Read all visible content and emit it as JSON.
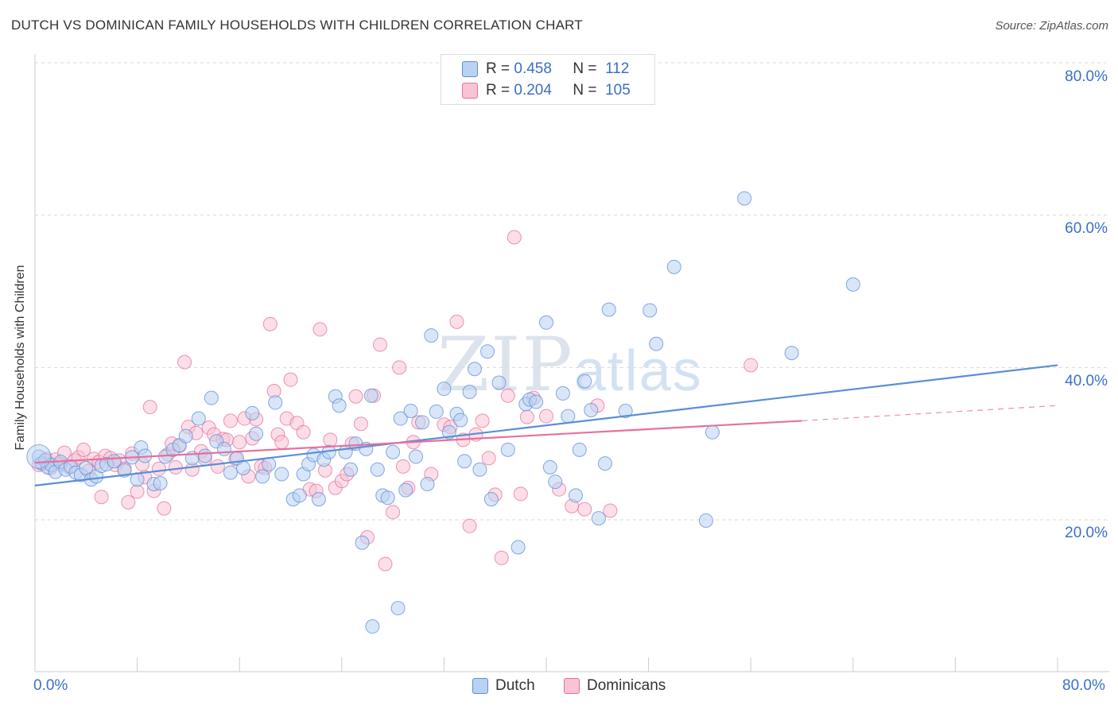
{
  "title": "DUTCH VS DOMINICAN FAMILY HOUSEHOLDS WITH CHILDREN CORRELATION CHART",
  "source": "Source: ZipAtlas.com",
  "watermark": {
    "zip": "ZIP",
    "atlas": "atlas"
  },
  "stats": {
    "dutch": {
      "r_label": "R =",
      "r": "0.458",
      "n_label": "N =",
      "n": "112"
    },
    "dominicans": {
      "r_label": "R =",
      "r": "0.204",
      "n_label": "N =",
      "n": "105"
    }
  },
  "legend": {
    "dutch": "Dutch",
    "dominicans": "Dominicans"
  },
  "x_tick_labels": {
    "min": "0.0%",
    "max": "80.0%"
  },
  "y_tick_labels": [
    "80.0%",
    "60.0%",
    "40.0%",
    "20.0%"
  ],
  "colors": {
    "dutch": "#5b8ed8",
    "dutch_fill": "#b9d1f3",
    "dominicans": "#e8709a",
    "dominicans_fill": "#f8c3d5",
    "grid": "#d9d9d9",
    "axis_text": "#3a6fc4"
  },
  "chart_data": {
    "type": "scatter",
    "title": "DUTCH VS DOMINICAN FAMILY HOUSEHOLDS WITH CHILDREN CORRELATION CHART",
    "xlabel": "",
    "ylabel": "Family Households with Children",
    "xlim": [
      0,
      80
    ],
    "ylim": [
      0,
      82
    ],
    "x_ticks": [
      0,
      8,
      16,
      24,
      32,
      40,
      48,
      56,
      64,
      72,
      80
    ],
    "y_gridlines": [
      20,
      40,
      60,
      80
    ],
    "legend_position": "bottom-center",
    "series": [
      {
        "name": "Dutch",
        "r": 0.458,
        "n": 112,
        "trend": {
          "x": [
            0,
            80
          ],
          "y": [
            24.5,
            40.3
          ],
          "dashed_from": null
        },
        "points": [
          [
            0.3,
            28.3
          ],
          [
            0.5,
            27.4
          ],
          [
            0.8,
            27.8
          ],
          [
            1.0,
            26.9
          ],
          [
            1.3,
            27.2
          ],
          [
            1.6,
            26.3
          ],
          [
            2.0,
            27.6
          ],
          [
            2.4,
            26.6
          ],
          [
            2.8,
            27.0
          ],
          [
            3.2,
            26.2
          ],
          [
            3.6,
            25.9
          ],
          [
            4.0,
            26.8
          ],
          [
            4.4,
            25.3
          ],
          [
            4.8,
            25.7
          ],
          [
            5.2,
            27.1
          ],
          [
            5.6,
            27.3
          ],
          [
            6.2,
            27.7
          ],
          [
            7.0,
            26.5
          ],
          [
            7.6,
            28.2
          ],
          [
            8.0,
            25.3
          ],
          [
            8.3,
            29.5
          ],
          [
            8.6,
            28.4
          ],
          [
            9.3,
            24.7
          ],
          [
            9.8,
            24.8
          ],
          [
            10.2,
            28.3
          ],
          [
            10.8,
            29.2
          ],
          [
            11.3,
            29.8
          ],
          [
            11.8,
            31.0
          ],
          [
            12.3,
            28.1
          ],
          [
            12.8,
            33.3
          ],
          [
            13.3,
            28.4
          ],
          [
            13.8,
            36.0
          ],
          [
            14.2,
            30.3
          ],
          [
            14.8,
            29.3
          ],
          [
            15.3,
            26.2
          ],
          [
            15.8,
            28.1
          ],
          [
            16.3,
            26.8
          ],
          [
            17.0,
            34.0
          ],
          [
            17.3,
            31.3
          ],
          [
            17.8,
            25.7
          ],
          [
            18.3,
            27.3
          ],
          [
            18.8,
            35.4
          ],
          [
            19.3,
            26.0
          ],
          [
            20.2,
            22.7
          ],
          [
            20.7,
            23.2
          ],
          [
            21.0,
            26.0
          ],
          [
            21.4,
            27.3
          ],
          [
            21.8,
            28.5
          ],
          [
            22.2,
            22.7
          ],
          [
            22.6,
            27.9
          ],
          [
            23.0,
            28.9
          ],
          [
            23.5,
            36.2
          ],
          [
            23.8,
            35.0
          ],
          [
            24.3,
            28.9
          ],
          [
            24.7,
            26.6
          ],
          [
            25.1,
            30.0
          ],
          [
            25.6,
            17.0
          ],
          [
            25.9,
            29.3
          ],
          [
            26.3,
            36.3
          ],
          [
            26.8,
            26.6
          ],
          [
            27.2,
            23.2
          ],
          [
            27.6,
            22.9
          ],
          [
            28.0,
            28.9
          ],
          [
            28.6,
            33.3
          ],
          [
            28.4,
            8.4
          ],
          [
            29.0,
            23.9
          ],
          [
            29.4,
            34.3
          ],
          [
            29.8,
            28.3
          ],
          [
            30.3,
            32.8
          ],
          [
            30.7,
            24.7
          ],
          [
            31.0,
            44.2
          ],
          [
            31.4,
            34.2
          ],
          [
            32.0,
            37.2
          ],
          [
            32.4,
            31.5
          ],
          [
            33.0,
            33.9
          ],
          [
            33.3,
            33.1
          ],
          [
            33.6,
            27.7
          ],
          [
            34.0,
            36.8
          ],
          [
            34.4,
            39.8
          ],
          [
            34.8,
            26.6
          ],
          [
            35.4,
            42.1
          ],
          [
            35.7,
            22.7
          ],
          [
            36.3,
            38.0
          ],
          [
            37.0,
            29.2
          ],
          [
            37.8,
            16.4
          ],
          [
            38.4,
            35.2
          ],
          [
            38.7,
            35.8
          ],
          [
            39.2,
            35.5
          ],
          [
            40.0,
            45.9
          ],
          [
            40.3,
            26.9
          ],
          [
            40.7,
            25.0
          ],
          [
            41.3,
            36.6
          ],
          [
            41.7,
            33.6
          ],
          [
            42.3,
            23.2
          ],
          [
            42.6,
            29.2
          ],
          [
            43.0,
            38.2
          ],
          [
            43.5,
            34.4
          ],
          [
            44.1,
            20.2
          ],
          [
            44.6,
            27.4
          ],
          [
            44.9,
            47.6
          ],
          [
            46.2,
            34.3
          ],
          [
            48.1,
            47.5
          ],
          [
            48.6,
            43.1
          ],
          [
            50.0,
            53.2
          ],
          [
            52.5,
            19.9
          ],
          [
            53.0,
            31.5
          ],
          [
            55.5,
            62.2
          ],
          [
            59.2,
            41.9
          ],
          [
            64.0,
            50.9
          ],
          [
            26.4,
            6.0
          ]
        ]
      },
      {
        "name": "Dominicans",
        "r": 0.204,
        "n": 105,
        "trend": {
          "x": [
            0,
            60,
            80
          ],
          "y": [
            27.5,
            33.0,
            35.0
          ],
          "dashed_from": 60
        },
        "points": [
          [
            0.3,
            27.2
          ],
          [
            0.6,
            27.5
          ],
          [
            0.9,
            28.0
          ],
          [
            1.2,
            26.8
          ],
          [
            1.6,
            27.9
          ],
          [
            2.0,
            27.3
          ],
          [
            2.3,
            28.8
          ],
          [
            2.7,
            26.9
          ],
          [
            3.1,
            27.8
          ],
          [
            3.4,
            28.2
          ],
          [
            3.8,
            29.2
          ],
          [
            4.2,
            26.4
          ],
          [
            4.6,
            28.0
          ],
          [
            5.0,
            27.6
          ],
          [
            5.2,
            23.0
          ],
          [
            5.5,
            28.4
          ],
          [
            5.9,
            28.1
          ],
          [
            6.3,
            27.2
          ],
          [
            6.6,
            27.8
          ],
          [
            7.0,
            26.7
          ],
          [
            7.3,
            22.3
          ],
          [
            7.6,
            28.7
          ],
          [
            8.0,
            23.7
          ],
          [
            8.4,
            27.3
          ],
          [
            8.6,
            25.6
          ],
          [
            9.0,
            34.8
          ],
          [
            9.3,
            23.8
          ],
          [
            9.7,
            26.7
          ],
          [
            10.1,
            21.5
          ],
          [
            10.4,
            28.6
          ],
          [
            10.7,
            30.0
          ],
          [
            11.0,
            26.9
          ],
          [
            11.3,
            29.7
          ],
          [
            11.7,
            40.7
          ],
          [
            12.0,
            32.2
          ],
          [
            12.3,
            26.6
          ],
          [
            12.6,
            31.4
          ],
          [
            13.0,
            29.0
          ],
          [
            13.3,
            28.0
          ],
          [
            13.6,
            32.1
          ],
          [
            14.0,
            31.2
          ],
          [
            14.3,
            27.0
          ],
          [
            14.7,
            30.6
          ],
          [
            15.0,
            30.5
          ],
          [
            15.3,
            33.0
          ],
          [
            15.7,
            28.0
          ],
          [
            16.0,
            30.2
          ],
          [
            16.4,
            33.3
          ],
          [
            16.7,
            25.7
          ],
          [
            17.0,
            30.7
          ],
          [
            17.3,
            33.2
          ],
          [
            17.7,
            27.0
          ],
          [
            18.0,
            26.8
          ],
          [
            18.4,
            45.7
          ],
          [
            18.7,
            36.9
          ],
          [
            19.0,
            31.2
          ],
          [
            19.3,
            30.2
          ],
          [
            19.7,
            33.3
          ],
          [
            20.0,
            38.4
          ],
          [
            20.5,
            32.7
          ],
          [
            21.0,
            31.5
          ],
          [
            21.5,
            24.0
          ],
          [
            22.0,
            23.8
          ],
          [
            22.3,
            45.0
          ],
          [
            22.7,
            26.5
          ],
          [
            23.1,
            30.5
          ],
          [
            23.5,
            24.2
          ],
          [
            24.0,
            25.1
          ],
          [
            24.4,
            26.0
          ],
          [
            24.8,
            30.0
          ],
          [
            25.1,
            36.2
          ],
          [
            25.5,
            32.6
          ],
          [
            26.0,
            17.7
          ],
          [
            26.5,
            36.3
          ],
          [
            27.0,
            43.0
          ],
          [
            27.4,
            14.2
          ],
          [
            28.0,
            21.0
          ],
          [
            28.5,
            40.0
          ],
          [
            28.8,
            27.0
          ],
          [
            29.2,
            24.2
          ],
          [
            29.6,
            30.2
          ],
          [
            30.0,
            32.8
          ],
          [
            31.0,
            26.0
          ],
          [
            32.0,
            32.5
          ],
          [
            32.5,
            32.2
          ],
          [
            33.0,
            46.0
          ],
          [
            33.5,
            30.5
          ],
          [
            34.0,
            19.2
          ],
          [
            34.5,
            31.2
          ],
          [
            35.0,
            33.0
          ],
          [
            35.5,
            28.1
          ],
          [
            36.0,
            23.3
          ],
          [
            36.5,
            15.0
          ],
          [
            37.0,
            36.3
          ],
          [
            37.5,
            57.1
          ],
          [
            38.0,
            23.4
          ],
          [
            38.5,
            33.5
          ],
          [
            39.0,
            36.0
          ],
          [
            40.0,
            33.6
          ],
          [
            41.0,
            24.0
          ],
          [
            42.0,
            21.8
          ],
          [
            43.0,
            21.4
          ],
          [
            44.0,
            35.0
          ],
          [
            45.0,
            21.2
          ],
          [
            56.0,
            40.3
          ]
        ]
      }
    ]
  }
}
